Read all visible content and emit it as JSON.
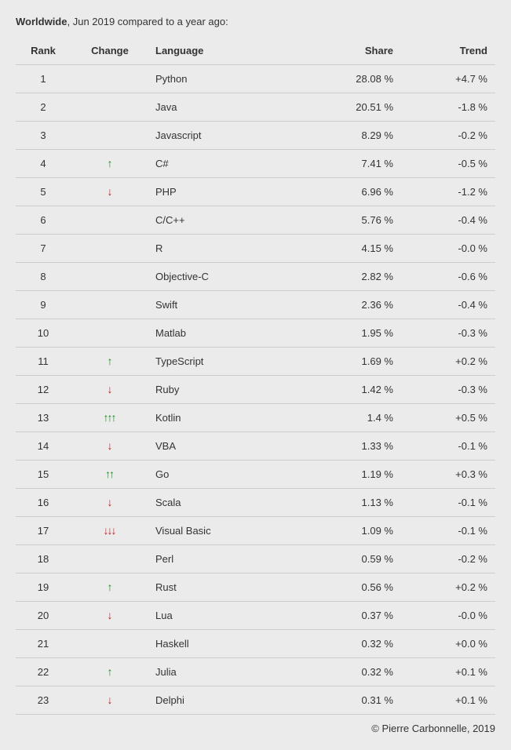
{
  "header": {
    "bold_region": "Worldwide",
    "rest": ", Jun 2019 compared to a year ago:"
  },
  "columns": {
    "rank": "Rank",
    "change": "Change",
    "language": "Language",
    "share": "Share",
    "trend": "Trend"
  },
  "arrow_colors": {
    "up": "#1a8f1a",
    "down": "#c81e1e"
  },
  "rows": [
    {
      "rank": "1",
      "change": 0,
      "language": "Python",
      "share": "28.08 %",
      "trend": "+4.7 %"
    },
    {
      "rank": "2",
      "change": 0,
      "language": "Java",
      "share": "20.51 %",
      "trend": "-1.8 %"
    },
    {
      "rank": "3",
      "change": 0,
      "language": "Javascript",
      "share": "8.29 %",
      "trend": "-0.2 %"
    },
    {
      "rank": "4",
      "change": 1,
      "language": "C#",
      "share": "7.41 %",
      "trend": "-0.5 %"
    },
    {
      "rank": "5",
      "change": -1,
      "language": "PHP",
      "share": "6.96 %",
      "trend": "-1.2 %"
    },
    {
      "rank": "6",
      "change": 0,
      "language": "C/C++",
      "share": "5.76 %",
      "trend": "-0.4 %"
    },
    {
      "rank": "7",
      "change": 0,
      "language": "R",
      "share": "4.15 %",
      "trend": "-0.0 %"
    },
    {
      "rank": "8",
      "change": 0,
      "language": "Objective-C",
      "share": "2.82 %",
      "trend": "-0.6 %"
    },
    {
      "rank": "9",
      "change": 0,
      "language": "Swift",
      "share": "2.36 %",
      "trend": "-0.4 %"
    },
    {
      "rank": "10",
      "change": 0,
      "language": "Matlab",
      "share": "1.95 %",
      "trend": "-0.3 %"
    },
    {
      "rank": "11",
      "change": 1,
      "language": "TypeScript",
      "share": "1.69 %",
      "trend": "+0.2 %"
    },
    {
      "rank": "12",
      "change": -1,
      "language": "Ruby",
      "share": "1.42 %",
      "trend": "-0.3 %"
    },
    {
      "rank": "13",
      "change": 3,
      "language": "Kotlin",
      "share": "1.4 %",
      "trend": "+0.5 %"
    },
    {
      "rank": "14",
      "change": -1,
      "language": "VBA",
      "share": "1.33 %",
      "trend": "-0.1 %"
    },
    {
      "rank": "15",
      "change": 2,
      "language": "Go",
      "share": "1.19 %",
      "trend": "+0.3 %"
    },
    {
      "rank": "16",
      "change": -1,
      "language": "Scala",
      "share": "1.13 %",
      "trend": "-0.1 %"
    },
    {
      "rank": "17",
      "change": -3,
      "language": "Visual Basic",
      "share": "1.09 %",
      "trend": "-0.1 %"
    },
    {
      "rank": "18",
      "change": 0,
      "language": "Perl",
      "share": "0.59 %",
      "trend": "-0.2 %"
    },
    {
      "rank": "19",
      "change": 1,
      "language": "Rust",
      "share": "0.56 %",
      "trend": "+0.2 %"
    },
    {
      "rank": "20",
      "change": -1,
      "language": "Lua",
      "share": "0.37 %",
      "trend": "-0.0 %"
    },
    {
      "rank": "21",
      "change": 0,
      "language": "Haskell",
      "share": "0.32 %",
      "trend": "+0.0 %"
    },
    {
      "rank": "22",
      "change": 1,
      "language": "Julia",
      "share": "0.32 %",
      "trend": "+0.1 %"
    },
    {
      "rank": "23",
      "change": -1,
      "language": "Delphi",
      "share": "0.31 %",
      "trend": "+0.1 %"
    }
  ],
  "credit": "© Pierre Carbonnelle, 2019"
}
